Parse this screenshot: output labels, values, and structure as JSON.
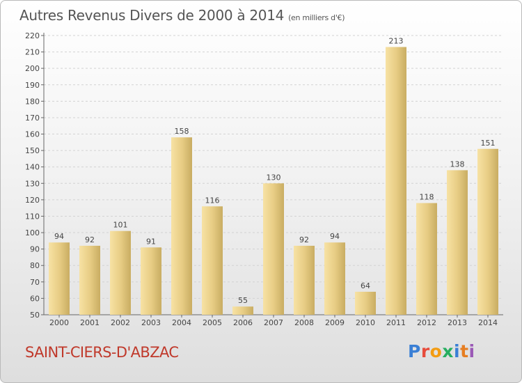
{
  "header": {
    "title": "Autres Revenus Divers de 2000 à 2014",
    "subtitle": "(en milliers d'€)"
  },
  "footer": {
    "city": "SAINT-CIERS-D'ABZAC",
    "logo": [
      "P",
      "r",
      "o",
      "x",
      "i",
      "t",
      "i"
    ],
    "logo_colors": [
      "#3a7fd5",
      "#e74c3c",
      "#f39c12",
      "#27ae60",
      "#3a7fd5",
      "#e67e22",
      "#9b59b6"
    ]
  },
  "colors": {
    "bar": "#e8cd85",
    "bar_light": "#f7e2a4",
    "bar_dark": "#c9ad62",
    "city": "#c0392b"
  },
  "chart_data": {
    "type": "bar",
    "categories": [
      "2000",
      "2001",
      "2002",
      "2003",
      "2004",
      "2005",
      "2006",
      "2007",
      "2008",
      "2009",
      "2010",
      "2011",
      "2012",
      "2013",
      "2014"
    ],
    "values": [
      94,
      92,
      101,
      91,
      158,
      116,
      55,
      130,
      92,
      94,
      64,
      213,
      118,
      138,
      151
    ],
    "data_labels": [
      "94",
      "92",
      "101",
      "91",
      "158",
      "116",
      "55",
      "130",
      "92",
      "94",
      "64",
      "213",
      "118",
      "138",
      "151"
    ],
    "yticks": [
      50,
      60,
      70,
      80,
      90,
      100,
      110,
      120,
      130,
      140,
      150,
      160,
      170,
      180,
      190,
      200,
      210,
      220
    ],
    "ylim": [
      50,
      220
    ],
    "grid": true,
    "title": "Autres Revenus Divers de 2000 à 2014",
    "xlabel": "",
    "ylabel": ""
  }
}
